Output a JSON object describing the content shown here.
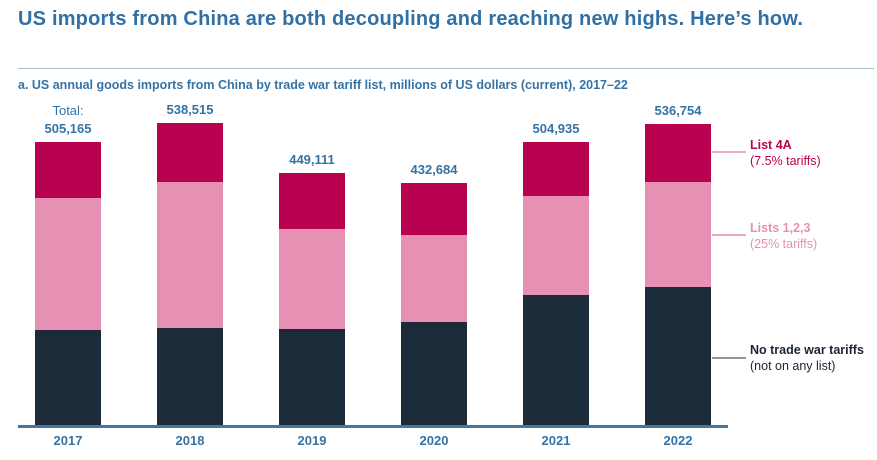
{
  "header": {
    "title": "US imports from China are both decoupling and reaching new highs. Here’s how."
  },
  "colors": {
    "title_blue": "#3270a4",
    "label_blue": "#3573a5",
    "axis_blue": "#4577a2",
    "divider": "#a9bdcc",
    "crimson": "#b8024f",
    "pink": "#e691b3",
    "navy": "#1b2b3a",
    "leader_pink": "#edaac5",
    "leader_gray": "#8d96a1",
    "text_dark": "#1b2433"
  },
  "chart_data": {
    "type": "bar",
    "stacked": true,
    "title": "a. US annual goods imports from China by trade war tariff list, millions of US dollars (current), 2017–22",
    "unit": "millions of US dollars (current)",
    "categories": [
      "2017",
      "2018",
      "2019",
      "2020",
      "2021",
      "2022"
    ],
    "total_prefix_label": "Total:",
    "totals": [
      "505,165",
      "538,515",
      "449,111",
      "432,684",
      "504,935",
      "536,754"
    ],
    "series": [
      {
        "id": "no-tariffs",
        "name": "No trade war tariffs",
        "note": "(not on any list)",
        "color": "#1b2b3a",
        "values": [
          169965,
          174015,
          173111,
          185584,
          232935,
          246954
        ]
      },
      {
        "id": "lists-123",
        "name": "Lists 1,2,3",
        "note": "(25% tariffs)",
        "color": "#e691b3",
        "values": [
          235000,
          259000,
          177000,
          154700,
          176000,
          187800
        ]
      },
      {
        "id": "list-4a",
        "name": "List 4A",
        "note": "(7.5% tariffs)",
        "color": "#b8024f",
        "values": [
          100200,
          105500,
          99000,
          92400,
          96000,
          102000
        ]
      }
    ],
    "ylim": [
      0,
      560000
    ],
    "grid": false,
    "legend_position": "right"
  }
}
